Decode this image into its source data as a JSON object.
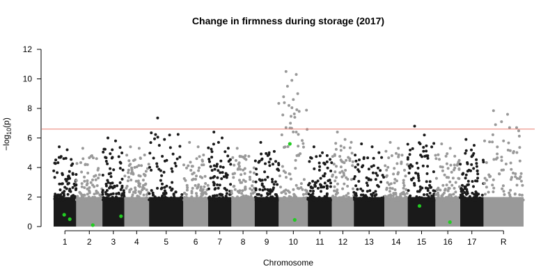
{
  "chart_data": {
    "type": "scatter",
    "title": "Change in firmness during storage (2017)",
    "xlabel": "Chromosome",
    "ylabel_prefix": "−log",
    "ylabel_sub": "10",
    "ylabel_suffix": "(p)",
    "ylim": [
      0,
      12
    ],
    "y_ticks": [
      0,
      2,
      4,
      6,
      8,
      10,
      12
    ],
    "grid": false,
    "threshold": 6.6,
    "colors": {
      "dark": "#1a1a1a",
      "light": "#999999",
      "highlight": "#22cc22",
      "threshold": "#e87a6e"
    },
    "chromosomes": [
      {
        "label": "1",
        "max": 5.4,
        "peaks": [
          5.4,
          5.2,
          4.6
        ]
      },
      {
        "label": "2",
        "max": 5.3,
        "peaks": [
          5.3,
          4.8
        ]
      },
      {
        "label": "3",
        "max": 6.0,
        "peaks": [
          6.0,
          5.8,
          5.2
        ]
      },
      {
        "label": "4",
        "max": 5.4,
        "peaks": [
          5.4,
          5.3
        ]
      },
      {
        "label": "5",
        "max": 7.35,
        "peaks": [
          7.35,
          6.2,
          5.9,
          5.5
        ]
      },
      {
        "label": "6",
        "max": 5.7,
        "peaks": [
          5.7,
          5.4
        ]
      },
      {
        "label": "7",
        "max": 6.4,
        "peaks": [
          6.4,
          6.0,
          5.7
        ]
      },
      {
        "label": "8",
        "max": 5.3,
        "peaks": [
          5.3,
          4.8
        ]
      },
      {
        "label": "9",
        "max": 5.7,
        "peaks": [
          5.7,
          5.0
        ]
      },
      {
        "label": "10",
        "max": 10.5,
        "peaks": [
          10.5,
          10.3,
          9.9,
          9.5,
          9.0,
          8.6,
          8.2,
          7.8,
          7.4,
          7.0,
          6.7,
          6.4
        ]
      },
      {
        "label": "11",
        "max": 5.4,
        "peaks": [
          5.4,
          5.0
        ]
      },
      {
        "label": "12",
        "max": 6.4,
        "peaks": [
          6.4,
          5.9
        ]
      },
      {
        "label": "13",
        "max": 5.6,
        "peaks": [
          5.6,
          5.4
        ]
      },
      {
        "label": "14",
        "max": 5.7,
        "peaks": [
          5.7,
          5.3
        ]
      },
      {
        "label": "15",
        "max": 6.8,
        "peaks": [
          6.8,
          6.2,
          5.6
        ]
      },
      {
        "label": "16",
        "max": 5.6,
        "peaks": [
          5.6,
          5.3
        ]
      },
      {
        "label": "17",
        "max": 5.9,
        "peaks": [
          5.9,
          5.5
        ]
      },
      {
        "label": "R",
        "max": 7.85,
        "peaks": [
          7.85,
          7.6,
          7.1,
          6.9,
          6.7,
          5.8
        ]
      }
    ],
    "highlighted_points": [
      {
        "chromosome": "1",
        "y": 0.8
      },
      {
        "chromosome": "1",
        "y": 0.5
      },
      {
        "chromosome": "2",
        "y": 0.1
      },
      {
        "chromosome": "3",
        "y": 0.7
      },
      {
        "chromosome": "10",
        "y": 5.6
      },
      {
        "chromosome": "10",
        "y": 0.45
      },
      {
        "chromosome": "15",
        "y": 1.4
      },
      {
        "chromosome": "16",
        "y": 0.3
      }
    ]
  }
}
